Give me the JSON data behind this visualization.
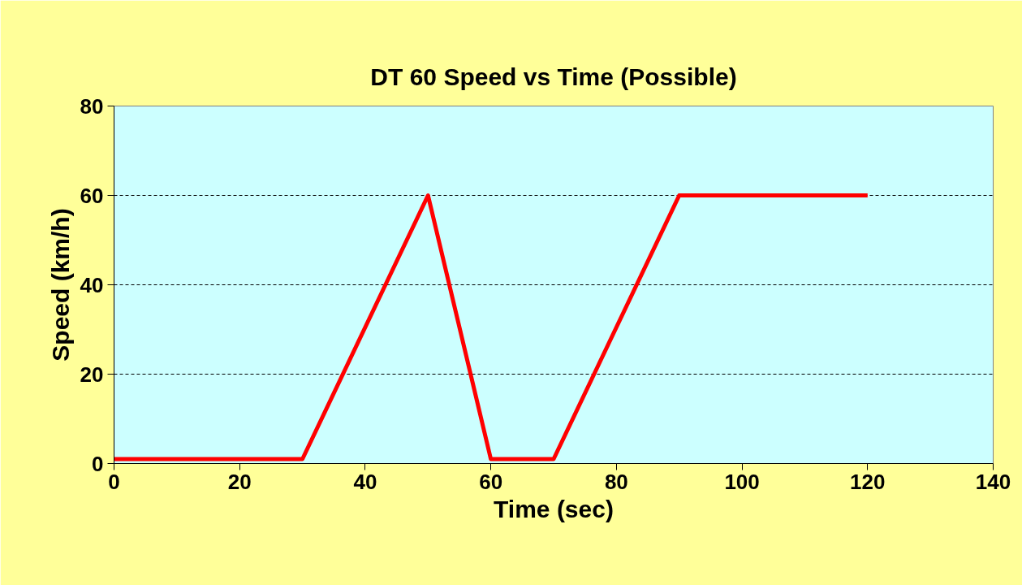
{
  "chart_data": {
    "type": "line",
    "title": "DT 60 Speed vs Time (Possible)",
    "xlabel": "Time (sec)",
    "ylabel": "Speed (km/h)",
    "x": [
      0,
      30,
      50,
      60,
      70,
      90,
      120
    ],
    "series": [
      {
        "color": "#ff0000",
        "values": [
          1,
          1,
          60,
          1,
          1,
          60,
          60
        ]
      }
    ],
    "xlim": [
      0,
      140
    ],
    "xticks": [
      0,
      20,
      40,
      60,
      80,
      100,
      120,
      140
    ],
    "ylim": [
      0,
      80
    ],
    "yticks": [
      0,
      20,
      40,
      60,
      80
    ],
    "grid": "y",
    "marker": "none",
    "line_style": "solid"
  }
}
